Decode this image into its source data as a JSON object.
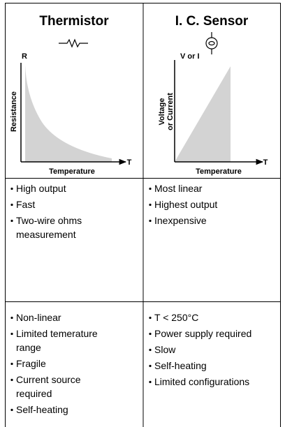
{
  "columns": [
    {
      "title": "Thermistor",
      "y_axis_letter": "R",
      "y_axis_label": [
        "Resistance"
      ],
      "x_axis_letter": "T",
      "x_axis_label": "Temperature",
      "pros": [
        [
          "High output"
        ],
        [
          "Fast"
        ],
        [
          "Two-wire ohms",
          "measurement"
        ]
      ],
      "cons": [
        [
          "Non-linear"
        ],
        [
          "Limited temerature",
          "range"
        ],
        [
          "Fragile"
        ],
        [
          "Current source",
          "required"
        ],
        [
          "Self-heating"
        ]
      ]
    },
    {
      "title": "I. C. Sensor",
      "y_axis_letter": "V or I",
      "y_axis_label": [
        "Voltage",
        "or Current"
      ],
      "x_axis_letter": "T",
      "x_axis_label": "Temperature",
      "pros": [
        [
          "Most linear"
        ],
        [
          "Highest output"
        ],
        [
          "Inexpensive"
        ]
      ],
      "cons": [
        [
          "T < 250°C"
        ],
        [
          "Power supply required"
        ],
        [
          "Slow"
        ],
        [
          "Self-heating"
        ],
        [
          "Limited configurations"
        ]
      ]
    }
  ]
}
